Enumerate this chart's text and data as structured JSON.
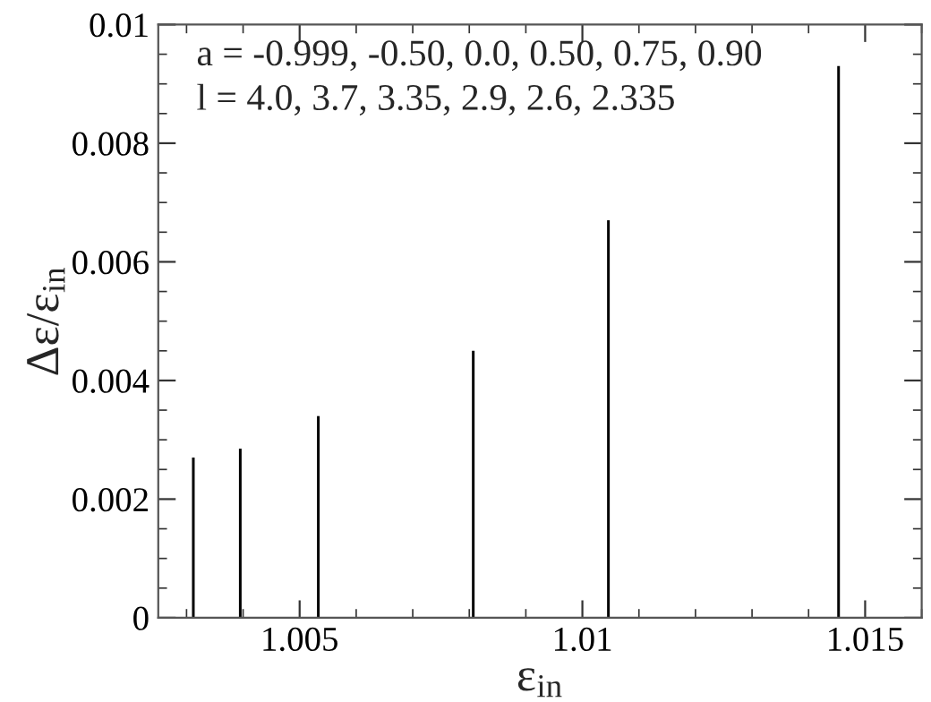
{
  "chart_data": {
    "type": "bar",
    "xlabel": "ε$_{in}$",
    "ylabel": "Δε/ε$_{in}$",
    "x": [
      1.00312,
      1.00395,
      1.00533,
      1.00807,
      1.01046,
      1.01453
    ],
    "values": [
      0.0027,
      0.00285,
      0.0034,
      0.0045,
      0.0067,
      0.0093
    ],
    "color": "#000000",
    "xlim": [
      1.0025,
      1.016
    ],
    "xticks": [
      1.005,
      1.01,
      1.015
    ],
    "ylim": [
      0,
      0.01
    ],
    "yticks": [
      0,
      0.002,
      0.004,
      0.006,
      0.008,
      0.01
    ],
    "annotations": [
      "a = -0.999, -0.50, 0.0, 0.50, 0.75, 0.90",
      "l = 4.0, 3.7, 3.35, 2.9, 2.6, 2.335"
    ],
    "grid": false,
    "legend": false
  }
}
